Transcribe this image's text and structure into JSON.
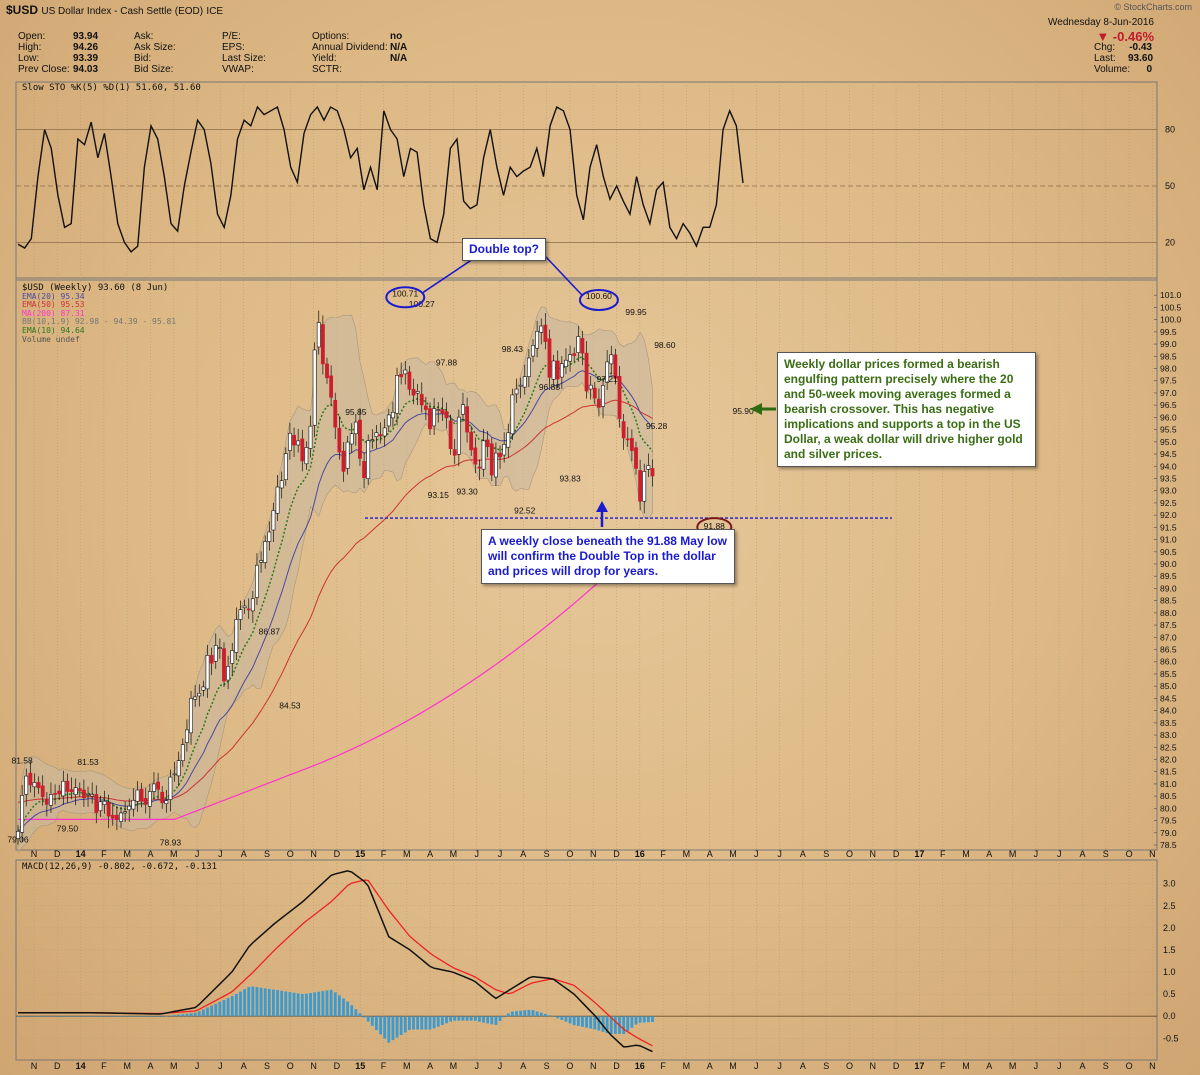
{
  "header": {
    "symbol": "$USD",
    "name": "US Dollar Index - Cash Settle (EOD)",
    "exchange": "ICE",
    "watermark": "© StockCharts.com",
    "date": "Wednesday  8-Jun-2016",
    "change_pct": "▼ -0.46%",
    "stats": [
      {
        "label": "Open:",
        "value": "93.94"
      },
      {
        "label": "High:",
        "value": "94.26"
      },
      {
        "label": "Low:",
        "value": "93.39"
      },
      {
        "label": "Prev Close:",
        "value": "94.03"
      }
    ],
    "fields2": [
      "Ask:",
      "Ask Size:",
      "Bid:",
      "Bid Size:"
    ],
    "fields3": [
      "P/E:",
      "EPS:",
      "Last Size:",
      "VWAP:"
    ],
    "fields4": [
      {
        "label": "Options:",
        "value": "no"
      },
      {
        "label": "Annual Dividend:",
        "value": "N/A"
      },
      {
        "label": "Yield:",
        "value": "N/A"
      },
      {
        "label": "SCTR:",
        "value": ""
      }
    ],
    "right_stats": [
      {
        "label": "Chg:",
        "value": "-0.43"
      },
      {
        "label": "Last:",
        "value": "93.60"
      },
      {
        "label": "Volume:",
        "value": "0"
      }
    ]
  },
  "colors": {
    "up": "#ffffff",
    "down": "#cc1f2c",
    "stoch": "#111111",
    "ema20": "#4a4aa0",
    "ema50": "#cc3333",
    "ma200": "#ff33cc",
    "ema10": "#2a7a1a",
    "bb_fill": "#c8b8a0",
    "macd": "#111111",
    "signal": "#ee2222",
    "hist": "#3a9ad2",
    "annot_blue": "#1a1ad0",
    "annot_green": "#2e6b10",
    "annot_brown": "#7a1a1a"
  },
  "chart_data": [
    {
      "type": "line",
      "panel": "stochastic",
      "legend": "Slow STO %K(5) %D(1) 51.60, 51.60",
      "ylim": [
        0,
        100
      ],
      "yticks": [
        20,
        50,
        80
      ],
      "values": [
        19,
        17,
        22,
        55,
        80,
        70,
        45,
        28,
        30,
        75,
        72,
        84,
        65,
        78,
        55,
        30,
        20,
        15,
        18,
        60,
        82,
        75,
        55,
        30,
        26,
        50,
        68,
        85,
        80,
        62,
        35,
        28,
        45,
        75,
        85,
        82,
        92,
        88,
        90,
        92,
        80,
        60,
        52,
        78,
        88,
        92,
        85,
        92,
        90,
        80,
        65,
        70,
        48,
        60,
        48,
        90,
        80,
        75,
        55,
        70,
        68,
        40,
        22,
        20,
        35,
        70,
        75,
        42,
        38,
        40,
        65,
        80,
        60,
        45,
        60,
        55,
        58,
        60,
        70,
        55,
        82,
        92,
        90,
        80,
        45,
        32,
        60,
        72,
        55,
        43,
        50,
        42,
        35,
        55,
        40,
        30,
        48,
        52,
        28,
        22,
        30,
        25,
        18,
        28,
        28,
        40,
        80,
        90,
        82,
        51.6
      ]
    },
    {
      "type": "candlestick",
      "panel": "price",
      "legend": [
        "$USD (Weekly) 93.60 (8 Jun)",
        "EMA(20) 95.34",
        "EMA(50) 95.53",
        "MA(200) 87.31",
        "BB(10,1.9) 92.98 - 94.39 - 95.81",
        "EMA(10) 94.64",
        "Volume undef"
      ],
      "ylim": [
        78.5,
        101.5
      ],
      "close": [
        79.06,
        80.53,
        81.32,
        80.96,
        81.06,
        80.84,
        80.48,
        80.16,
        80.57,
        80.59,
        80.59,
        81.11,
        80.69,
        80.68,
        80.85,
        80.71,
        80.43,
        80.58,
        80.57,
        79.82,
        80.27,
        80.29,
        79.68,
        79.6,
        79.54,
        79.81,
        79.86,
        80.09,
        80.33,
        80.75,
        80.29,
        80.16,
        80.69,
        81.0,
        80.78,
        80.23,
        80.32,
        81.28,
        81.41,
        81.95,
        82.61,
        83.21,
        84.5,
        84.56,
        84.71,
        84.97,
        86.26,
        85.94,
        86.67,
        86.58,
        85.21,
        85.81,
        86.46,
        87.73,
        88.13,
        88.28,
        88.12,
        88.59,
        89.95,
        90.14,
        90.92,
        91.31,
        92.19,
        93.15,
        93.41,
        94.52,
        95.35,
        94.87,
        95.04,
        94.22,
        94.77,
        95.64,
        98.76,
        99.88,
        98.19,
        97.62,
        96.82,
        95.6,
        94.58,
        93.79,
        94.99,
        95.33,
        95.81,
        94.32,
        93.53,
        95.05,
        95.09,
        95.38,
        95.24,
        95.57,
        96.1,
        96.21,
        97.72,
        97.66,
        97.94,
        97.15,
        96.91,
        97.06,
        96.51,
        96.32,
        95.53,
        96.36,
        96.32,
        96.16,
        95.98,
        94.72,
        94.45,
        96.01,
        96.52,
        95.4,
        94.67,
        94.09,
        93.92,
        95.04,
        94.8,
        93.64,
        94.54,
        94.38,
        94.9,
        95.37,
        96.92,
        97.16,
        97.32,
        97.67,
        98.43,
        98.95,
        99.52,
        99.74,
        99.1,
        97.64,
        98.31,
        97.57,
        98.2,
        98.34,
        98.57,
        98.53,
        99.31,
        98.63,
        97.08,
        97.32,
        96.79,
        96.41,
        97.31,
        98.27,
        98.56,
        97.6,
        95.95,
        95.16,
        95.1,
        94.64,
        93.91,
        92.57,
        93.79,
        94.03,
        93.6
      ],
      "labels": [
        {
          "text": "81.58",
          "x": 1,
          "y": 81.58
        },
        {
          "text": "79.06",
          "x": 0,
          "y": 79.06
        },
        {
          "text": "79.50",
          "x": 12,
          "y": 79.5
        },
        {
          "text": "81.53",
          "x": 17,
          "y": 81.53
        },
        {
          "text": "78.93",
          "x": 37,
          "y": 78.93
        },
        {
          "text": "86.87",
          "x": 61,
          "y": 86.87
        },
        {
          "text": "84.53",
          "x": 66,
          "y": 84.53
        },
        {
          "text": "95.85",
          "x": 82,
          "y": 95.85
        },
        {
          "text": "100.71",
          "x": 94,
          "y": 100.71
        },
        {
          "text": "100.27",
          "x": 98,
          "y": 100.27
        },
        {
          "text": "97.88",
          "x": 104,
          "y": 97.88
        },
        {
          "text": "93.15",
          "x": 102,
          "y": 93.15
        },
        {
          "text": "93.30",
          "x": 109,
          "y": 93.3
        },
        {
          "text": "98.43",
          "x": 120,
          "y": 98.43
        },
        {
          "text": "92.52",
          "x": 123,
          "y": 92.52
        },
        {
          "text": "96.88",
          "x": 129,
          "y": 96.88
        },
        {
          "text": "93.83",
          "x": 134,
          "y": 93.83
        },
        {
          "text": "97.21",
          "x": 143,
          "y": 97.21
        },
        {
          "text": "100.60",
          "x": 141,
          "y": 100.6
        },
        {
          "text": "99.95",
          "x": 150,
          "y": 99.95
        },
        {
          "text": "98.60",
          "x": 157,
          "y": 98.6
        },
        {
          "text": "95.28",
          "x": 155,
          "y": 95.28
        },
        {
          "text": "95.90",
          "x": 176,
          "y": 95.9
        },
        {
          "text": "91.88",
          "x": 169,
          "y": 91.88
        }
      ]
    },
    {
      "type": "line",
      "panel": "macd",
      "legend": "MACD(12,26,9) -0.802, -0.672, -0.131",
      "ylim": [
        -0.9,
        3.4
      ],
      "yticks": [
        -0.5,
        0.0,
        0.5,
        1.0,
        1.5,
        2.0,
        2.5,
        3.0
      ],
      "series": [
        {
          "name": "MACD",
          "anchors": [
            [
              0,
              0.08
            ],
            [
              20,
              0.08
            ],
            [
              40,
              0.05
            ],
            [
              50,
              0.2
            ],
            [
              60,
              1.0
            ],
            [
              65,
              1.6
            ],
            [
              72,
              2.1
            ],
            [
              80,
              2.6
            ],
            [
              88,
              3.2
            ],
            [
              93,
              3.3
            ],
            [
              98,
              3.0
            ],
            [
              104,
              1.8
            ],
            [
              110,
              1.5
            ],
            [
              116,
              1.1
            ],
            [
              122,
              1.0
            ],
            [
              128,
              0.8
            ],
            [
              134,
              0.4
            ],
            [
              138,
              0.6
            ],
            [
              144,
              0.9
            ],
            [
              150,
              0.85
            ],
            [
              156,
              0.5
            ],
            [
              162,
              0.0
            ],
            [
              166,
              -0.4
            ],
            [
              170,
              -0.7
            ],
            [
              174,
              -0.65
            ],
            [
              178,
              -0.8
            ]
          ]
        },
        {
          "name": "Signal",
          "anchors": [
            [
              0,
              0.08
            ],
            [
              20,
              0.08
            ],
            [
              40,
              0.06
            ],
            [
              50,
              0.12
            ],
            [
              60,
              0.55
            ],
            [
              66,
              1.0
            ],
            [
              72,
              1.5
            ],
            [
              80,
              2.1
            ],
            [
              88,
              2.6
            ],
            [
              93,
              3.0
            ],
            [
              98,
              3.1
            ],
            [
              104,
              2.4
            ],
            [
              110,
              1.8
            ],
            [
              116,
              1.4
            ],
            [
              122,
              1.1
            ],
            [
              128,
              0.9
            ],
            [
              134,
              0.6
            ],
            [
              138,
              0.5
            ],
            [
              144,
              0.75
            ],
            [
              150,
              0.85
            ],
            [
              156,
              0.7
            ],
            [
              162,
              0.3
            ],
            [
              166,
              0.0
            ],
            [
              170,
              -0.3
            ],
            [
              174,
              -0.5
            ],
            [
              178,
              -0.67
            ]
          ]
        }
      ]
    }
  ],
  "x_axis": {
    "labels": [
      "N",
      "D",
      "14",
      "F",
      "M",
      "A",
      "M",
      "J",
      "J",
      "A",
      "S",
      "O",
      "N",
      "D",
      "15",
      "F",
      "M",
      "A",
      "M",
      "J",
      "J",
      "A",
      "S",
      "O",
      "N",
      "D",
      "16",
      "F",
      "M",
      "A",
      "M",
      "J",
      "J",
      "A",
      "S",
      "O",
      "N",
      "D",
      "17",
      "F",
      "M",
      "A",
      "M",
      "J",
      "J",
      "A",
      "S",
      "O",
      "N"
    ],
    "bold": [
      "14",
      "15",
      "16",
      "17"
    ]
  },
  "price_ticks": [
    "101.0",
    "100.5",
    "100.0",
    "99.5",
    "99.0",
    "98.5",
    "98.0",
    "97.5",
    "97.0",
    "96.5",
    "96.0",
    "95.5",
    "95.0",
    "94.5",
    "94.0",
    "93.5",
    "93.0",
    "92.5",
    "92.0",
    "91.5",
    "91.0",
    "90.5",
    "90.0",
    "89.5",
    "89.0",
    "88.5",
    "88.0",
    "87.5",
    "87.0",
    "86.5",
    "86.0",
    "85.5",
    "85.0",
    "84.5",
    "84.0",
    "83.5",
    "83.0",
    "82.5",
    "82.0",
    "81.5",
    "81.0",
    "80.5",
    "80.0",
    "79.5",
    "79.0",
    "78.5"
  ],
  "annotations": {
    "double_top": "Double top?",
    "dollar_note": "Weekly dollar prices formed a bearish engulfing pattern precisely where the 20 and 50-week moving averages formed a bearish crossover. This has negative implications and supports a top in the US Dollar, a weak dollar will drive higher gold and silver prices.",
    "close_note": "A weekly close beneath the 91.88 May low will confirm the Double Top in the dollar and prices will drop for years."
  }
}
